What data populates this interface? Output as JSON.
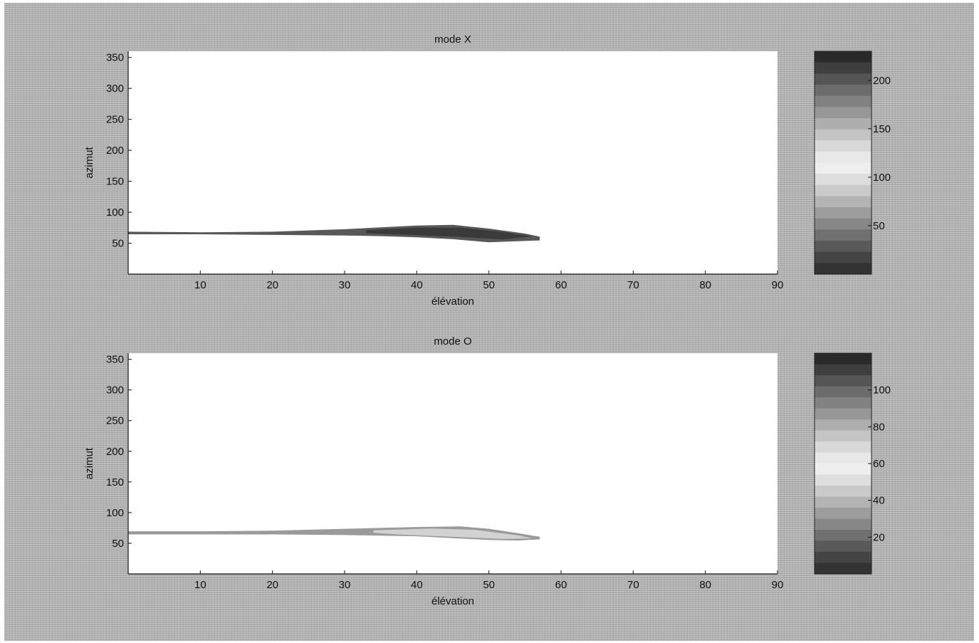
{
  "chart_data": [
    {
      "type": "heatmap",
      "title": "mode X",
      "xlabel": "élévation",
      "ylabel": "azimut",
      "xlim": [
        0,
        90
      ],
      "ylim": [
        0,
        360
      ],
      "x_ticks": [
        10,
        20,
        30,
        40,
        50,
        60,
        70,
        80,
        90
      ],
      "y_ticks": [
        50,
        100,
        150,
        200,
        250,
        300,
        350
      ],
      "colorbar": {
        "range": [
          0,
          230
        ],
        "ticks": [
          50,
          100,
          150,
          200
        ]
      },
      "region_outline": [
        [
          0,
          68
        ],
        [
          10,
          67
        ],
        [
          20,
          68
        ],
        [
          30,
          72
        ],
        [
          35,
          75
        ],
        [
          40,
          78
        ],
        [
          45,
          79
        ],
        [
          50,
          73
        ],
        [
          55,
          65
        ],
        [
          57,
          60
        ],
        [
          57,
          55
        ],
        [
          50,
          52
        ],
        [
          45,
          57
        ],
        [
          40,
          60
        ],
        [
          35,
          62
        ],
        [
          30,
          63
        ],
        [
          20,
          64
        ],
        [
          10,
          65
        ],
        [
          0,
          65
        ]
      ],
      "region_core": [
        [
          33,
          71
        ],
        [
          40,
          75
        ],
        [
          46,
          75
        ],
        [
          52,
          68
        ],
        [
          56,
          61
        ],
        [
          52,
          56
        ],
        [
          46,
          60
        ],
        [
          40,
          63
        ],
        [
          33,
          66
        ]
      ],
      "region_shade": "#585858",
      "core_shade": "#3a3a3a"
    },
    {
      "type": "heatmap",
      "title": "mode O",
      "xlabel": "élévation",
      "ylabel": "azimut",
      "xlim": [
        0,
        90
      ],
      "ylim": [
        0,
        360
      ],
      "x_ticks": [
        10,
        20,
        30,
        40,
        50,
        60,
        70,
        80,
        90
      ],
      "y_ticks": [
        50,
        100,
        150,
        200,
        250,
        300,
        350
      ],
      "colorbar": {
        "range": [
          0,
          120
        ],
        "ticks": [
          20,
          40,
          60,
          80,
          100
        ]
      },
      "region_outline": [
        [
          0,
          69
        ],
        [
          10,
          69
        ],
        [
          20,
          70
        ],
        [
          30,
          73
        ],
        [
          40,
          76
        ],
        [
          46,
          77
        ],
        [
          50,
          73
        ],
        [
          54,
          66
        ],
        [
          57,
          60
        ],
        [
          57,
          57
        ],
        [
          54,
          55
        ],
        [
          50,
          56
        ],
        [
          45,
          59
        ],
        [
          40,
          62
        ],
        [
          30,
          64
        ],
        [
          20,
          65
        ],
        [
          10,
          65
        ],
        [
          0,
          65
        ]
      ],
      "region_core": [
        [
          34,
          71
        ],
        [
          42,
          74
        ],
        [
          48,
          72
        ],
        [
          54,
          63
        ],
        [
          56,
          58
        ],
        [
          52,
          57
        ],
        [
          46,
          60
        ],
        [
          38,
          64
        ],
        [
          34,
          67
        ]
      ],
      "region_shade": "#9a9a9a",
      "core_shade": "#d2d2d2"
    }
  ]
}
